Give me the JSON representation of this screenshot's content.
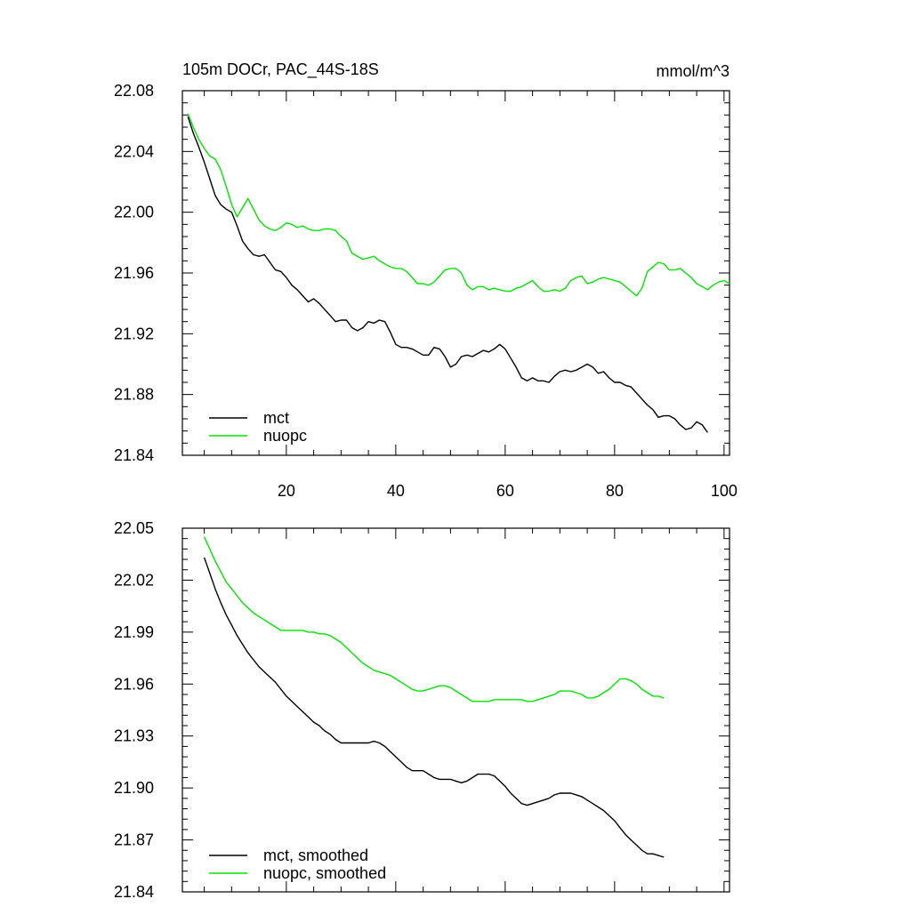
{
  "chart_data": [
    {
      "type": "line",
      "title": "105m DOCr, PAC_44S-18S",
      "units": "mmol/m^3",
      "xlim": [
        1,
        101
      ],
      "ylim": [
        21.84,
        22.08
      ],
      "x_ticks": [
        20,
        40,
        60,
        80,
        100
      ],
      "y_ticks": [
        21.84,
        21.88,
        21.92,
        21.96,
        22.0,
        22.04,
        22.08
      ],
      "y_tick_labels": [
        "21.84",
        "21.88",
        "21.92",
        "21.96",
        "22.00",
        "22.04",
        "22.08"
      ],
      "legend_position": "bottom-left",
      "series": [
        {
          "name": "mct",
          "color": "#000000",
          "x_start": 2,
          "x_step": 1,
          "values": [
            22.063,
            22.052,
            22.043,
            22.033,
            22.022,
            22.011,
            22.005,
            22.002,
            22.0,
            21.991,
            21.981,
            21.976,
            21.972,
            21.971,
            21.972,
            21.967,
            21.962,
            21.961,
            21.957,
            21.952,
            21.949,
            21.945,
            21.941,
            21.943,
            21.94,
            21.936,
            21.932,
            21.928,
            21.929,
            21.929,
            21.924,
            21.922,
            21.924,
            21.928,
            21.927,
            21.929,
            21.928,
            21.921,
            21.913,
            21.911,
            21.911,
            21.91,
            21.908,
            21.906,
            21.906,
            21.911,
            21.91,
            21.905,
            21.898,
            21.9,
            21.905,
            21.906,
            21.905,
            21.907,
            21.909,
            21.908,
            21.91,
            21.913,
            21.91,
            21.904,
            21.898,
            21.891,
            21.889,
            21.891,
            21.889,
            21.889,
            21.888,
            21.892,
            21.895,
            21.896,
            21.895,
            21.896,
            21.898,
            21.9,
            21.898,
            21.894,
            21.895,
            21.891,
            21.888,
            21.888,
            21.886,
            21.885,
            21.881,
            21.877,
            21.873,
            21.87,
            21.865,
            21.866,
            21.866,
            21.864,
            21.86,
            21.857,
            21.858,
            21.862,
            21.86,
            21.855
          ]
        },
        {
          "name": "nuopc",
          "color": "#00e600",
          "x_start": 2,
          "x_step": 1,
          "values": [
            22.065,
            22.056,
            22.048,
            22.042,
            22.037,
            22.035,
            22.028,
            22.017,
            22.005,
            21.997,
            22.003,
            22.009,
            22.002,
            21.995,
            21.991,
            21.989,
            21.988,
            21.99,
            21.993,
            21.992,
            21.99,
            21.991,
            21.989,
            21.988,
            21.988,
            21.989,
            21.989,
            21.988,
            21.984,
            21.981,
            21.973,
            21.971,
            21.969,
            21.97,
            21.971,
            21.968,
            21.966,
            21.964,
            21.963,
            21.963,
            21.961,
            21.957,
            21.953,
            21.953,
            21.952,
            21.954,
            21.958,
            21.962,
            21.963,
            21.963,
            21.96,
            21.952,
            21.949,
            21.951,
            21.951,
            21.949,
            21.95,
            21.949,
            21.948,
            21.948,
            21.95,
            21.951,
            21.953,
            21.955,
            21.951,
            21.948,
            21.948,
            21.949,
            21.948,
            21.95,
            21.955,
            21.957,
            21.958,
            21.953,
            21.954,
            21.956,
            21.957,
            21.956,
            21.955,
            21.954,
            21.951,
            21.948,
            21.945,
            21.95,
            21.961,
            21.964,
            21.967,
            21.966,
            21.962,
            21.962,
            21.963,
            21.96,
            21.957,
            21.953,
            21.951,
            21.949,
            21.952,
            21.954,
            21.955,
            21.953
          ]
        }
      ]
    },
    {
      "type": "line",
      "title": "",
      "xlim": [
        1,
        101
      ],
      "ylim": [
        21.84,
        22.05
      ],
      "x_ticks": [
        20,
        40,
        60,
        80,
        100
      ],
      "y_ticks": [
        21.84,
        21.87,
        21.9,
        21.93,
        21.96,
        21.99,
        22.02,
        22.05
      ],
      "y_tick_labels": [
        "21.84",
        "21.87",
        "21.90",
        "21.93",
        "21.96",
        "21.99",
        "22.02",
        "22.05"
      ],
      "legend_position": "bottom-left",
      "series": [
        {
          "name": "mct, smoothed",
          "color": "#000000",
          "x_start": 5,
          "x_step": 1,
          "values": [
            22.033,
            22.024,
            22.015,
            22.007,
            22.0,
            21.994,
            21.988,
            21.983,
            21.978,
            21.974,
            21.97,
            21.967,
            21.964,
            21.961,
            21.957,
            21.953,
            21.95,
            21.947,
            21.944,
            21.941,
            21.938,
            21.936,
            21.933,
            21.931,
            21.928,
            21.926,
            21.926,
            21.926,
            21.926,
            21.926,
            21.926,
            21.927,
            21.926,
            21.924,
            21.921,
            21.918,
            21.915,
            21.912,
            21.91,
            21.91,
            21.91,
            21.908,
            21.906,
            21.905,
            21.905,
            21.905,
            21.904,
            21.903,
            21.904,
            21.906,
            21.908,
            21.908,
            21.908,
            21.907,
            21.904,
            21.901,
            21.897,
            21.894,
            21.891,
            21.89,
            21.891,
            21.892,
            21.893,
            21.894,
            21.896,
            21.897,
            21.897,
            21.897,
            21.896,
            21.895,
            21.893,
            21.891,
            21.889,
            21.887,
            21.884,
            21.881,
            21.877,
            21.873,
            21.87,
            21.867,
            21.864,
            21.862,
            21.862,
            21.861,
            21.86
          ]
        },
        {
          "name": "nuopc, smoothed",
          "color": "#00e600",
          "x_start": 5,
          "x_step": 1,
          "values": [
            22.045,
            22.038,
            22.031,
            22.025,
            22.019,
            22.015,
            22.011,
            22.007,
            22.004,
            22.001,
            21.999,
            21.997,
            21.995,
            21.993,
            21.991,
            21.991,
            21.991,
            21.991,
            21.991,
            21.99,
            21.99,
            21.989,
            21.989,
            21.988,
            21.986,
            21.984,
            21.981,
            21.978,
            21.975,
            21.972,
            21.97,
            21.968,
            21.967,
            21.966,
            21.965,
            21.963,
            21.961,
            21.959,
            21.957,
            21.956,
            21.956,
            21.957,
            21.958,
            21.959,
            21.959,
            21.958,
            21.956,
            21.954,
            21.952,
            21.95,
            21.95,
            21.95,
            21.95,
            21.951,
            21.951,
            21.951,
            21.951,
            21.951,
            21.951,
            21.95,
            21.95,
            21.951,
            21.952,
            21.953,
            21.954,
            21.956,
            21.956,
            21.956,
            21.955,
            21.954,
            21.952,
            21.952,
            21.953,
            21.955,
            21.957,
            21.96,
            21.963,
            21.963,
            21.962,
            21.96,
            21.957,
            21.955,
            21.953,
            21.953,
            21.952
          ]
        }
      ]
    }
  ]
}
